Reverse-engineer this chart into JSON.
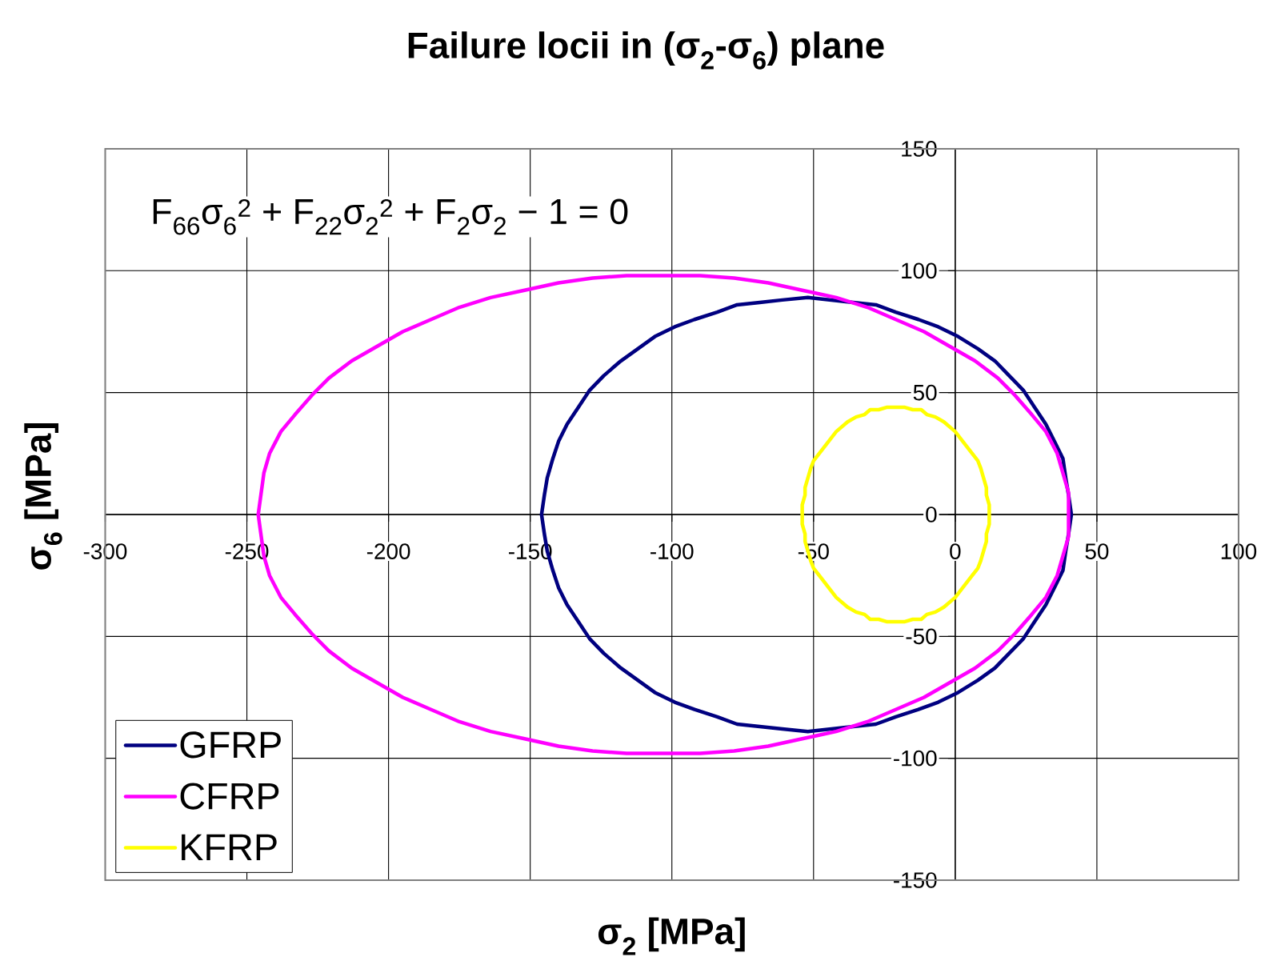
{
  "chart_data": {
    "type": "line",
    "title": "Failure locii in (σ$_{2}$-σ$_{6}$) plane",
    "xlabel": "σ$_{2}$ [MPa]",
    "ylabel": "σ$_{6}$ [MPa]",
    "annotations": [
      "F$_{66}$σ$_{6}$$^{2}$ + F$_{22}$σ$_{2}$$^{2}$ + F$_{2}$σ$_{2}$ − 1 = 0"
    ],
    "xlim": [
      -300,
      100
    ],
    "ylim": [
      -150,
      150
    ],
    "xticks": [
      -300,
      -250,
      -200,
      -150,
      -100,
      -50,
      0,
      50,
      100
    ],
    "yticks": [
      -150,
      -100,
      -50,
      0,
      50,
      100,
      150
    ],
    "grid": true,
    "legend": "bottom left",
    "marker": "none",
    "line_style": "solid",
    "series": [
      {
        "name": "GFRP",
        "color": "#000080",
        "x": [
          41,
          40,
          39,
          38,
          35,
          32,
          28,
          24,
          19,
          14,
          8,
          1,
          -6,
          -13,
          -21,
          -28,
          -36,
          -44,
          -52,
          -61,
          -69,
          -77,
          -84,
          -92,
          -99,
          -106,
          -112,
          -118,
          -124,
          -129,
          -133,
          -137,
          -140,
          -142,
          -144,
          -145,
          -146,
          -145,
          -144,
          -142,
          -140,
          -137,
          -133,
          -129,
          -124,
          -118,
          -112,
          -106,
          -99,
          -92,
          -84,
          -77,
          -69,
          -61,
          -52,
          -44,
          -36,
          -28,
          -21,
          -13,
          -6,
          1,
          8,
          14,
          19,
          24,
          28,
          32,
          35,
          38,
          39,
          40,
          41,
          40
        ],
        "values": [
          0,
          8,
          15,
          23,
          30,
          37,
          44,
          51,
          57,
          63,
          68,
          73,
          77,
          80,
          83,
          86,
          87,
          88,
          89,
          88,
          87,
          86,
          83,
          80,
          77,
          73,
          68,
          63,
          57,
          51,
          44,
          37,
          30,
          23,
          15,
          8,
          0,
          -8,
          -15,
          -23,
          -30,
          -37,
          -44,
          -51,
          -57,
          -63,
          -68,
          -73,
          -77,
          -80,
          -83,
          -86,
          -87,
          -88,
          -89,
          -88,
          -87,
          -86,
          -83,
          -80,
          -77,
          -73,
          -68,
          -63,
          -57,
          -51,
          -44,
          -37,
          -30,
          -23,
          -15,
          -8,
          0,
          8
        ]
      },
      {
        "name": "CFRP",
        "color": "#ff00ff",
        "x": [
          40,
          40,
          38,
          36,
          32,
          27,
          21,
          15,
          7,
          -2,
          -11,
          -21,
          -31,
          -42,
          -54,
          -66,
          -78,
          -90,
          -103,
          -116,
          -128,
          -140,
          -152,
          -164,
          -175,
          -185,
          -195,
          -204,
          -213,
          -221,
          -227,
          -233,
          -238,
          -242,
          -244,
          -246,
          -244,
          -242,
          -238,
          -233,
          -227,
          -221,
          -213,
          -204,
          -195,
          -185,
          -175,
          -164,
          -152,
          -140,
          -128,
          -116,
          -103,
          -90,
          -78,
          -66,
          -54,
          -42,
          -31,
          -21,
          -11,
          -2,
          7,
          15,
          21,
          27,
          32,
          36,
          38,
          40,
          40,
          40
        ],
        "values": [
          0,
          9,
          17,
          25,
          34,
          41,
          49,
          56,
          63,
          69,
          75,
          80,
          85,
          89,
          92,
          95,
          97,
          98,
          98,
          98,
          97,
          95,
          92,
          89,
          85,
          80,
          75,
          69,
          63,
          56,
          49,
          41,
          34,
          25,
          17,
          0,
          -17,
          -25,
          -34,
          -41,
          -49,
          -56,
          -63,
          -69,
          -75,
          -80,
          -85,
          -89,
          -92,
          -95,
          -97,
          -98,
          -98,
          -98,
          -97,
          -95,
          -92,
          -89,
          -85,
          -80,
          -75,
          -69,
          -63,
          -56,
          -49,
          -41,
          -34,
          -25,
          -17,
          -9,
          0,
          9
        ]
      },
      {
        "name": "KFRP",
        "color": "#ffff00",
        "x": [
          12,
          12,
          11,
          11,
          10,
          9,
          8,
          6,
          4,
          2,
          0,
          -2,
          -4,
          -7,
          -10,
          -12,
          -15,
          -18,
          -21,
          -24,
          -27,
          -30,
          -32,
          -35,
          -38,
          -40,
          -42,
          -44,
          -46,
          -48,
          -50,
          -51,
          -52,
          -53,
          -53,
          -54,
          -54,
          -54,
          -53,
          -53,
          -52,
          -51,
          -50,
          -48,
          -46,
          -44,
          -42,
          -40,
          -38,
          -35,
          -32,
          -30,
          -27,
          -24,
          -21,
          -18,
          -15,
          -12,
          -10,
          -7,
          -4,
          -2,
          0,
          2,
          4,
          6,
          8,
          9,
          10,
          11,
          11,
          12,
          12,
          12
        ],
        "values": [
          0,
          4,
          8,
          11,
          15,
          19,
          22,
          25,
          28,
          31,
          34,
          36,
          38,
          40,
          41,
          43,
          43,
          44,
          44,
          44,
          43,
          43,
          41,
          40,
          38,
          36,
          34,
          31,
          28,
          25,
          22,
          19,
          15,
          11,
          8,
          4,
          0,
          -4,
          -8,
          -11,
          -15,
          -19,
          -22,
          -25,
          -28,
          -31,
          -34,
          -36,
          -38,
          -40,
          -41,
          -43,
          -43,
          -44,
          -44,
          -44,
          -43,
          -43,
          -41,
          -40,
          -38,
          -36,
          -34,
          -31,
          -28,
          -25,
          -22,
          -19,
          -15,
          -11,
          -8,
          -4,
          0,
          4
        ]
      }
    ]
  }
}
